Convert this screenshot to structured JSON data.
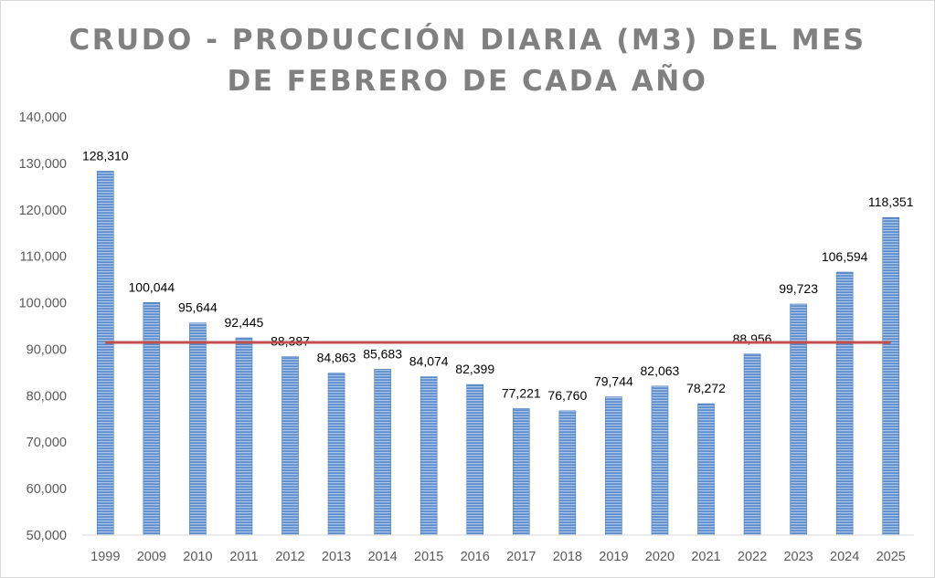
{
  "chart_data": {
    "type": "bar",
    "title_lines": [
      "CRUDO - PRODUCCIÓN DIARIA (M3) DEL MES",
      "DE FEBRERO DE CADA AÑO"
    ],
    "categories": [
      "1999",
      "2009",
      "2010",
      "2011",
      "2012",
      "2013",
      "2014",
      "2015",
      "2016",
      "2017",
      "2018",
      "2019",
      "2020",
      "2021",
      "2022",
      "2023",
      "2024",
      "2025"
    ],
    "values": [
      128310,
      100044,
      95644,
      92445,
      88387,
      84863,
      85683,
      84074,
      82399,
      77221,
      76760,
      79744,
      82063,
      78272,
      88956,
      99723,
      106594,
      118351
    ],
    "value_labels": [
      "128,310",
      "100,044",
      "95,644",
      "92,445",
      "88,387",
      "84,863",
      "85,683",
      "84,074",
      "82,399",
      "77,221",
      "76,760",
      "79,744",
      "82,063",
      "78,272",
      "88,956",
      "99,723",
      "106,594",
      "118,351"
    ],
    "ylim": [
      50000,
      140000
    ],
    "y_ticks": [
      50000,
      60000,
      70000,
      80000,
      90000,
      100000,
      110000,
      120000,
      130000,
      140000
    ],
    "y_tick_labels": [
      "50,000",
      "60,000",
      "70,000",
      "80,000",
      "90,000",
      "100,000",
      "110,000",
      "120,000",
      "130,000",
      "140,000"
    ],
    "reference_line_value": 91463,
    "xlabel": "",
    "ylabel": "",
    "grid": false,
    "legend": "none",
    "colors": {
      "bar_fill": "#5b8ccb",
      "bar_stripe": "#a9c4e8",
      "bar_border": "#4a78b5",
      "reference_line": "#c0504d",
      "title": "#808080",
      "tick_text": "#595959",
      "label_text": "#000000",
      "axis": "#d9d9d9"
    }
  }
}
